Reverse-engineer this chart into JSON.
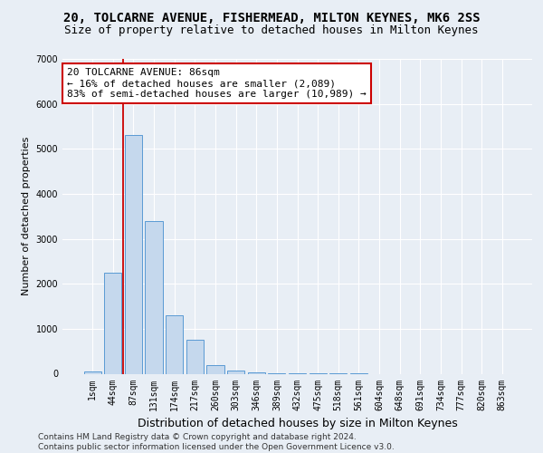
{
  "title1": "20, TOLCARNE AVENUE, FISHERMEAD, MILTON KEYNES, MK6 2SS",
  "title2": "Size of property relative to detached houses in Milton Keynes",
  "xlabel": "Distribution of detached houses by size in Milton Keynes",
  "ylabel": "Number of detached properties",
  "categories": [
    "1sqm",
    "44sqm",
    "87sqm",
    "131sqm",
    "174sqm",
    "217sqm",
    "260sqm",
    "303sqm",
    "346sqm",
    "389sqm",
    "432sqm",
    "475sqm",
    "518sqm",
    "561sqm",
    "604sqm",
    "648sqm",
    "691sqm",
    "734sqm",
    "777sqm",
    "820sqm",
    "863sqm"
  ],
  "values": [
    60,
    2250,
    5300,
    3400,
    1300,
    750,
    200,
    80,
    30,
    10,
    5,
    2,
    1,
    1,
    0,
    0,
    0,
    0,
    0,
    0,
    0
  ],
  "bar_color": "#c5d8ed",
  "bar_edge_color": "#5a9ad4",
  "annotation_line1": "20 TOLCARNE AVENUE: 86sqm",
  "annotation_line2": "← 16% of detached houses are smaller (2,089)",
  "annotation_line3": "83% of semi-detached houses are larger (10,989) →",
  "annotation_box_color": "#ffffff",
  "annotation_box_edge": "#cc0000",
  "footer": "Contains HM Land Registry data © Crown copyright and database right 2024.\nContains public sector information licensed under the Open Government Licence v3.0.",
  "ylim": [
    0,
    7000
  ],
  "yticks": [
    0,
    1000,
    2000,
    3000,
    4000,
    5000,
    6000,
    7000
  ],
  "bg_color": "#e8eef5",
  "plot_bg_color": "#e8eef5",
  "grid_color": "#ffffff",
  "title1_fontsize": 10,
  "title2_fontsize": 9,
  "xlabel_fontsize": 9,
  "ylabel_fontsize": 8,
  "tick_fontsize": 7,
  "annotation_fontsize": 8,
  "footer_fontsize": 6.5,
  "red_line_x": 1.5
}
